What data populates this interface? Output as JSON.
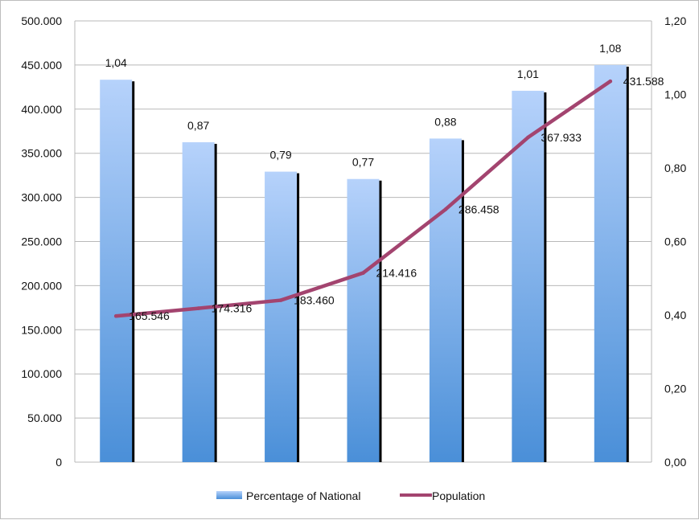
{
  "chart_data": {
    "type": "bar",
    "categories": [
      "",
      "",
      "",
      "",
      "",
      "",
      ""
    ],
    "series": [
      {
        "name": "Percentage of National",
        "type": "bar",
        "axis": "right",
        "values": [
          1.04,
          0.87,
          0.79,
          0.77,
          0.88,
          1.01,
          1.08
        ],
        "labels": [
          "1,04",
          "0,87",
          "0,79",
          "0,77",
          "0,88",
          "1,01",
          "1,08"
        ]
      },
      {
        "name": "Population",
        "type": "line",
        "axis": "left",
        "values": [
          165546,
          174316,
          183460,
          214416,
          286458,
          367933,
          431588
        ],
        "labels": [
          "165.546",
          "174.316",
          "183.460",
          "214.416",
          "286.458",
          "367.933",
          "431.588"
        ]
      }
    ],
    "y_left": {
      "lim": [
        0,
        500000
      ],
      "ticks": [
        0,
        50000,
        100000,
        150000,
        200000,
        250000,
        300000,
        350000,
        400000,
        450000,
        500000
      ],
      "tick_labels": [
        "0",
        "50.000",
        "100.000",
        "150.000",
        "200.000",
        "250.000",
        "300.000",
        "350.000",
        "400.000",
        "450.000",
        "500.000"
      ]
    },
    "y_right": {
      "lim": [
        0,
        1.2
      ],
      "ticks": [
        0,
        0.2,
        0.4,
        0.6,
        0.8,
        1.0,
        1.2
      ],
      "tick_labels": [
        "0,00",
        "0,20",
        "0,40",
        "0,60",
        "0,80",
        "1,00",
        "1,20"
      ]
    },
    "grid": true,
    "legend": "bottom",
    "colors": {
      "bar_top": "#b6d2fb",
      "bar_bottom": "#4a8fd8",
      "bar_shadow": "#000000",
      "line": "#a3446f",
      "grid": "#b8b8b8"
    }
  }
}
